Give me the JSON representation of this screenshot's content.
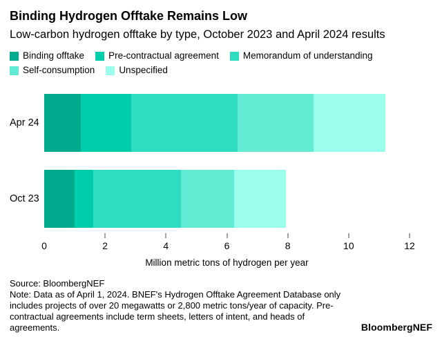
{
  "header": {
    "title": "Binding Hydrogen Offtake Remains Low",
    "subtitle": "Low-carbon hydrogen offtake by type, October 2023 and April 2024 results"
  },
  "chart_data": {
    "type": "bar",
    "orientation": "horizontal",
    "stacked": true,
    "categories": [
      "Apr 24",
      "Oct 23"
    ],
    "series": [
      {
        "name": "Binding offtake",
        "color": "#00ab8e",
        "values": [
          1.2,
          1.0
        ]
      },
      {
        "name": "Pre-contractual agreement",
        "color": "#00cdac",
        "values": [
          1.65,
          0.6
        ]
      },
      {
        "name": "Memorandum of understanding",
        "color": "#2edcc2",
        "values": [
          3.5,
          2.9
        ]
      },
      {
        "name": "Self-consumption",
        "color": "#61ebd3",
        "values": [
          2.5,
          1.75
        ]
      },
      {
        "name": "Unspecified",
        "color": "#9bfeec",
        "values": [
          2.35,
          1.7
        ]
      }
    ],
    "totals": [
      11.2,
      7.95
    ],
    "xlabel": "Million metric tons of hydrogen per year",
    "xticks": [
      0,
      2,
      4,
      6,
      8,
      10,
      12
    ],
    "xlim": [
      0,
      12
    ],
    "grid": false,
    "legend_position": "top"
  },
  "footer": {
    "source": "Source: BloombergNEF",
    "note": "Note: Data as of April 1, 2024. BNEF's Hydrogen Offtake Agreement Database only includes projects of over 20 megawatts or 2,800 metric tons/year of capacity. Pre-contractual agreements include term sheets, letters of intent, and heads of agreements.",
    "brand": "BloombergNEF"
  }
}
